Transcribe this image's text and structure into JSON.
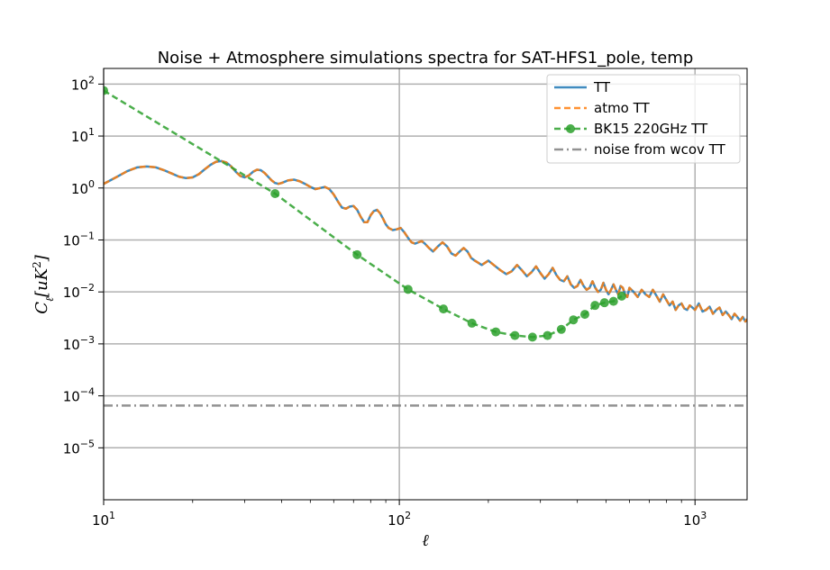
{
  "chart_data": {
    "type": "line",
    "title": "Noise + Atmosphere simulations spectra for SAT-HFS1_pole, temp",
    "xlabel": "ℓ",
    "ylabel": "C_ℓ[uK²]",
    "xscale": "log",
    "yscale": "log",
    "xlim": [
      10,
      1500
    ],
    "ylim": [
      1e-06,
      200
    ],
    "grid": true,
    "legend_position": "top-right",
    "x_ticks": [
      {
        "base": "10",
        "exp": "1",
        "value": 10
      },
      {
        "base": "10",
        "exp": "2",
        "value": 100
      },
      {
        "base": "10",
        "exp": "3",
        "value": 1000
      }
    ],
    "y_ticks": [
      {
        "base": "10",
        "exp": "2",
        "value": 100
      },
      {
        "base": "10",
        "exp": "1",
        "value": 10
      },
      {
        "base": "10",
        "exp": "0",
        "value": 1
      },
      {
        "base": "10",
        "exp": "−1",
        "value": 0.1
      },
      {
        "base": "10",
        "exp": "−2",
        "value": 0.01
      },
      {
        "base": "10",
        "exp": "−3",
        "value": 0.001
      },
      {
        "base": "10",
        "exp": "−4",
        "value": 0.0001
      },
      {
        "base": "10",
        "exp": "−5",
        "value": 1e-05
      }
    ],
    "series": [
      {
        "name": "TT",
        "color": "#1f77b4",
        "style": "solid",
        "x": [
          10,
          11,
          12,
          13,
          14,
          15,
          16,
          17,
          18,
          19,
          20,
          21,
          22,
          23,
          24,
          25,
          26,
          27,
          28,
          29,
          30,
          31,
          32,
          33,
          34,
          35,
          36,
          37,
          38,
          39,
          40,
          42,
          44,
          46,
          48,
          50,
          52,
          54,
          56,
          58,
          60,
          62,
          64,
          66,
          68,
          70,
          72,
          74,
          76,
          78,
          80,
          82,
          84,
          86,
          88,
          90,
          92,
          95,
          98,
          101,
          104,
          107,
          110,
          113,
          116,
          119,
          122,
          126,
          130,
          135,
          140,
          145,
          150,
          155,
          160,
          165,
          170,
          175,
          180,
          190,
          200,
          210,
          220,
          230,
          240,
          250,
          260,
          270,
          280,
          290,
          300,
          310,
          320,
          330,
          340,
          350,
          360,
          370,
          380,
          390,
          400,
          410,
          420,
          430,
          440,
          450,
          460,
          470,
          480,
          490,
          500,
          510,
          520,
          530,
          540,
          550,
          560,
          570,
          580,
          590,
          600,
          620,
          640,
          660,
          680,
          700,
          720,
          740,
          760,
          780,
          800,
          820,
          840,
          860,
          880,
          900,
          920,
          940,
          960,
          980,
          1000,
          1030,
          1060,
          1090,
          1120,
          1150,
          1180,
          1210,
          1240,
          1270,
          1300,
          1330,
          1360,
          1390,
          1420,
          1450,
          1480,
          1500
        ],
        "y": [
          1.2,
          1.6,
          2.1,
          2.5,
          2.6,
          2.5,
          2.2,
          1.9,
          1.65,
          1.55,
          1.6,
          1.85,
          2.3,
          2.8,
          3.2,
          3.3,
          3.1,
          2.6,
          2.05,
          1.7,
          1.6,
          1.75,
          2.05,
          2.25,
          2.2,
          1.95,
          1.65,
          1.4,
          1.25,
          1.2,
          1.25,
          1.4,
          1.45,
          1.35,
          1.2,
          1.05,
          0.95,
          1.0,
          1.05,
          0.95,
          0.75,
          0.55,
          0.42,
          0.4,
          0.44,
          0.45,
          0.38,
          0.28,
          0.22,
          0.22,
          0.3,
          0.36,
          0.38,
          0.33,
          0.26,
          0.2,
          0.17,
          0.155,
          0.16,
          0.17,
          0.14,
          0.11,
          0.09,
          0.085,
          0.09,
          0.095,
          0.085,
          0.07,
          0.06,
          0.075,
          0.09,
          0.075,
          0.055,
          0.05,
          0.06,
          0.07,
          0.06,
          0.045,
          0.04,
          0.033,
          0.04,
          0.032,
          0.026,
          0.022,
          0.025,
          0.033,
          0.026,
          0.02,
          0.024,
          0.031,
          0.023,
          0.018,
          0.022,
          0.029,
          0.021,
          0.017,
          0.016,
          0.02,
          0.014,
          0.012,
          0.013,
          0.017,
          0.013,
          0.011,
          0.012,
          0.016,
          0.012,
          0.01,
          0.011,
          0.015,
          0.011,
          0.009,
          0.011,
          0.014,
          0.011,
          0.009,
          0.013,
          0.012,
          0.009,
          0.008,
          0.012,
          0.01,
          0.008,
          0.011,
          0.009,
          0.008,
          0.011,
          0.0085,
          0.0065,
          0.009,
          0.007,
          0.0055,
          0.0065,
          0.0045,
          0.0055,
          0.006,
          0.0048,
          0.0045,
          0.0055,
          0.005,
          0.0045,
          0.006,
          0.0042,
          0.0045,
          0.0052,
          0.0038,
          0.0045,
          0.005,
          0.0036,
          0.0042,
          0.0036,
          0.003,
          0.0038,
          0.0033,
          0.0028,
          0.0033,
          0.0027,
          0.003
        ]
      },
      {
        "name": "atmo TT",
        "color": "#ff7f0e",
        "style": "dashed",
        "same_as": "TT"
      },
      {
        "name": "BK15 220GHz TT",
        "color": "#2ca02c",
        "style": "dashed",
        "marker": "o",
        "x": [
          10,
          38,
          72,
          107,
          141,
          176,
          212,
          246,
          282,
          317,
          353,
          388,
          424,
          459,
          494,
          530,
          565
        ],
        "y": [
          75,
          0.78,
          0.052,
          0.0112,
          0.0047,
          0.0025,
          0.0017,
          0.00145,
          0.00135,
          0.00145,
          0.0019,
          0.0029,
          0.0037,
          0.0055,
          0.0062,
          0.0066,
          0.0083
        ]
      },
      {
        "name": "noise from wcov TT",
        "color": "#7f7f7f",
        "style": "dashdot",
        "x": [
          10,
          1500
        ],
        "y": [
          6.5e-05,
          6.5e-05
        ]
      }
    ]
  }
}
